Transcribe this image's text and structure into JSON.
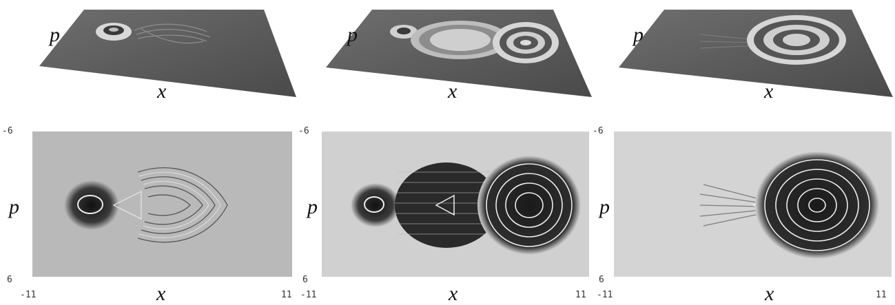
{
  "figure": {
    "panels": [
      {
        "surface": {
          "x_label": "x",
          "p_label": "p"
        },
        "map": {
          "x_label": "x",
          "p_label": "p",
          "x_min": "-11",
          "x_max": "11",
          "p_top": "-6",
          "p_bottom": "6"
        }
      },
      {
        "surface": {
          "x_label": "x",
          "p_label": "p"
        },
        "map": {
          "x_label": "x",
          "p_label": "p",
          "x_min": "-11",
          "x_max": "11",
          "p_top": "-6",
          "p_bottom": "6"
        }
      },
      {
        "surface": {
          "x_label": "x",
          "p_label": "p"
        },
        "map": {
          "x_label": "x",
          "p_label": "p",
          "x_min": "-11",
          "x_max": "11",
          "p_top": "-6",
          "p_bottom": "6"
        }
      }
    ]
  }
}
